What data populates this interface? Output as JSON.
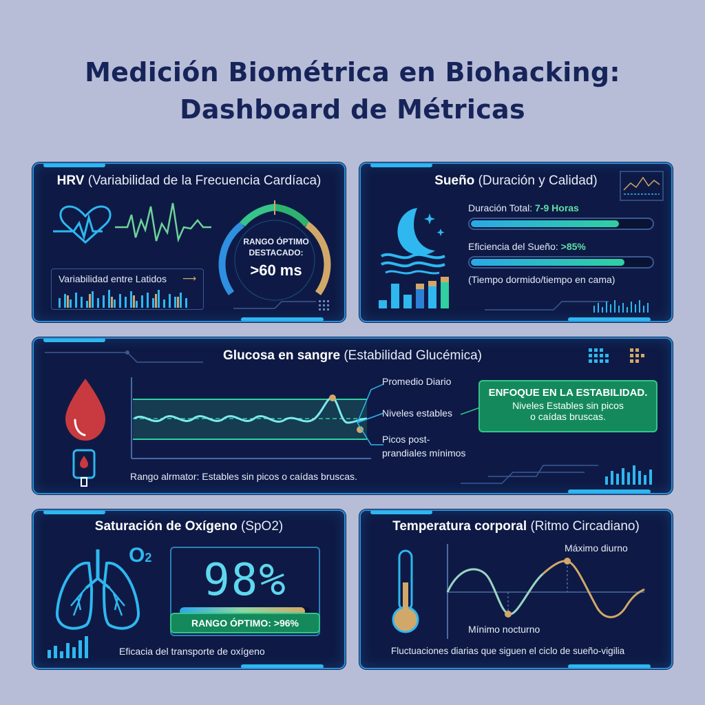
{
  "title": {
    "line1": "Medición Biométrica en Biohacking:",
    "line2": "Dashboard de Métricas"
  },
  "hrv": {
    "title_bold": "HRV",
    "title_sub": "(Variabilidad de la Frecuencia Cardíaca)",
    "label": "Variabilidad entre Latidos",
    "gauge_label_1": "RANGO ÓPTIMO",
    "gauge_label_2": "DESTACADO:",
    "gauge_value": ">60 ms",
    "icon": "heart-icon"
  },
  "sleep": {
    "title_bold": "Sueño",
    "title_sub": "(Duración y Calidad)",
    "duration_label": "Duración Total:",
    "duration_value": "7-9 Horas",
    "duration_fill": 0.82,
    "efficiency_label": "Eficiencia del Sueño:",
    "efficiency_value": ">85%",
    "efficiency_fill": 0.85,
    "note": "(Tiempo dormido/tiempo en cama)",
    "icon": "moon-icon"
  },
  "glucose": {
    "title_bold": "Glucosa en sangre",
    "title_sub": "(Estabilidad Glucémica)",
    "callout_daily": "Promedio Diario",
    "callout_stable": "Niveles estables",
    "callout_peaks_1": "Picos post-",
    "callout_peaks_2": "prandiales mínimos",
    "focus_title": "ENFOQUE EN LA ESTABILIDAD.",
    "focus_line1": "Niveles Estables sin picos",
    "focus_line2": "o caídas bruscas.",
    "range_note": "Rango alrmator: Estables sin picos o caídas bruscas.",
    "icon": "blood-drop-icon"
  },
  "spo2": {
    "title_bold": "Saturación de Oxígeno",
    "title_sub": "(SpO2)",
    "o2_symbol": "O",
    "o2_subscript": "2",
    "value": "98%",
    "level": 0.98,
    "optimal": "RANGO ÓPTIMO: >96%",
    "note": "Eficacia del transporte de oxígeno",
    "icon": "lungs-icon"
  },
  "temperature": {
    "title_bold": "Temperatura corporal",
    "title_sub": "(Ritmo Circadiano)",
    "max_label": "Máximo diurno",
    "min_label": "Mínimo nocturno",
    "note": "Fluctuaciones diarias que siguen el ciclo de sueño-vigilia",
    "icon": "thermometer-icon"
  },
  "colors": {
    "background": "#b7bdd6",
    "panel": "#0e1a45",
    "accent": "#2fb7f0",
    "green": "#36c48a",
    "gold": "#d1a86a"
  }
}
